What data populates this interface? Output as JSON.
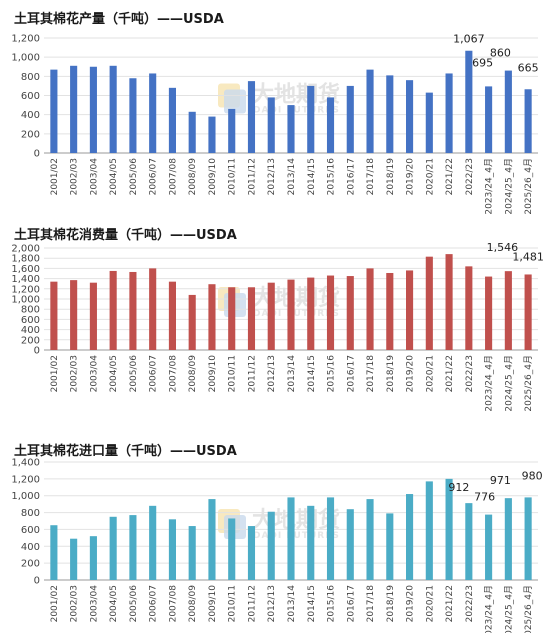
{
  "watermark": {
    "name": "大地期货",
    "sub": "DADI FUTURES"
  },
  "chart_data": [
    {
      "type": "bar",
      "title": "土耳其棉花产量（千吨）——USDA",
      "color": "#4472C4",
      "categories": [
        "2001/02",
        "2002/03",
        "2003/04",
        "2004/05",
        "2005/06",
        "2006/07",
        "2007/08",
        "2008/09",
        "2009/10",
        "2010/11",
        "2011/12",
        "2012/13",
        "2013/14",
        "2014/15",
        "2015/16",
        "2016/17",
        "2017/18",
        "2018/19",
        "2019/20",
        "2020/21",
        "2021/22",
        "2022/23",
        "2023/24_4月",
        "2024/25_4月",
        "2025/26_4月"
      ],
      "values": [
        870,
        910,
        900,
        910,
        780,
        830,
        680,
        430,
        380,
        460,
        750,
        580,
        500,
        700,
        580,
        700,
        870,
        810,
        760,
        630,
        830,
        1067,
        695,
        860,
        665
      ],
      "ylim": [
        0,
        1200
      ],
      "yticks": [
        "0",
        "200",
        "400",
        "600",
        "800",
        "1,000",
        "1,200"
      ],
      "labels": [
        {
          "index": 21,
          "text": "1,067"
        },
        {
          "index": 22,
          "text": "695"
        },
        {
          "index": 23,
          "text": "860"
        },
        {
          "index": 24,
          "text": "665"
        }
      ]
    },
    {
      "type": "bar",
      "title": "土耳其棉花消费量（千吨）——USDA",
      "color": "#C0504D",
      "categories": [
        "2001/02",
        "2002/03",
        "2003/04",
        "2004/05",
        "2005/06",
        "2006/07",
        "2007/08",
        "2008/09",
        "2009/10",
        "2010/11",
        "2011/12",
        "2012/13",
        "2013/14",
        "2014/15",
        "2015/16",
        "2016/17",
        "2017/18",
        "2018/19",
        "2019/20",
        "2020/21",
        "2021/22",
        "2022/23",
        "2023/24_4月",
        "2024/25_4月",
        "2025/26_4月"
      ],
      "values": [
        1340,
        1370,
        1320,
        1550,
        1530,
        1600,
        1340,
        1080,
        1290,
        1230,
        1230,
        1320,
        1380,
        1420,
        1460,
        1450,
        1600,
        1510,
        1560,
        1830,
        1880,
        1640,
        1440,
        1546,
        1481
      ],
      "ylim": [
        0,
        2000
      ],
      "yticks": [
        "0",
        "200",
        "400",
        "600",
        "800",
        "1,000",
        "1,200",
        "1,400",
        "1,600",
        "1,800",
        "2,000"
      ],
      "labels": [
        {
          "index": 23,
          "text": "1,546"
        },
        {
          "index": 24,
          "text": "1,481"
        }
      ]
    },
    {
      "type": "bar",
      "title": "土耳其棉花进口量（千吨）——USDA",
      "color": "#4BACC6",
      "categories": [
        "2001/02",
        "2002/03",
        "2003/04",
        "2004/05",
        "2005/06",
        "2006/07",
        "2007/08",
        "2008/09",
        "2009/10",
        "2010/11",
        "2011/12",
        "2012/13",
        "2013/14",
        "2014/15",
        "2015/16",
        "2016/17",
        "2017/18",
        "2018/19",
        "2019/20",
        "2020/21",
        "2021/22",
        "2022/23",
        "2023/24_4月",
        "2024/25_4月",
        "2025/26_4月"
      ],
      "values": [
        650,
        490,
        520,
        750,
        770,
        880,
        720,
        640,
        960,
        730,
        640,
        810,
        980,
        880,
        980,
        840,
        960,
        790,
        1020,
        1170,
        1200,
        912,
        776,
        971,
        980
      ],
      "ylim": [
        0,
        1400
      ],
      "yticks": [
        "0",
        "200",
        "400",
        "600",
        "800",
        "1,000",
        "1,200",
        "1,400"
      ],
      "labels": [
        {
          "index": 21,
          "text": "912"
        },
        {
          "index": 22,
          "text": "776"
        },
        {
          "index": 23,
          "text": "971"
        },
        {
          "index": 24,
          "text": "980"
        }
      ]
    }
  ]
}
